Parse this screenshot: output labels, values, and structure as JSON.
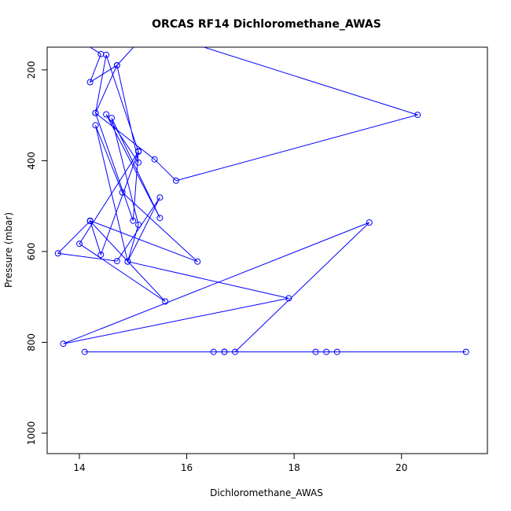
{
  "chart_data": {
    "type": "line",
    "title": "ORCAS RF14 Dichloromethane_AWAS",
    "xlabel": "Dichloromethane_AWAS",
    "ylabel": "Pressure (mbar)",
    "xlim": [
      13.4,
      21.6
    ],
    "ylim": [
      1045,
      150
    ],
    "y_reversed": true,
    "x_ticks": [
      14,
      16,
      18,
      20
    ],
    "y_ticks": [
      200,
      400,
      600,
      800,
      1000
    ],
    "grid": false,
    "legend": "none",
    "color": "#0000ff",
    "series": [
      {
        "x_out_in": [
          13.0,
          14.2
        ],
        "y_out_in": [
          -70,
          150
        ],
        "points_x": [
          14.4,
          14.2,
          14.7,
          15.3,
          20.3,
          15.8,
          15.4,
          14.3,
          14.7,
          15.1,
          14.5,
          15.5,
          14.6,
          15.1,
          14.9,
          14.3,
          14.8,
          16.2,
          14.2,
          14.4,
          15.1,
          15.0,
          14.3,
          14.5,
          15.1,
          14.0,
          15.6,
          14.2,
          13.6,
          14.7,
          15.5,
          14.9,
          17.9,
          13.7,
          19.4,
          16.9,
          16.7,
          16.5,
          16.7,
          18.6,
          18.8,
          21.2,
          18.4,
          14.1
        ],
        "points_y": [
          165,
          227,
          190,
          112,
          299,
          444,
          397,
          295,
          190,
          404,
          298,
          526,
          306,
          541,
          622,
          322,
          470,
          622,
          532,
          607,
          379,
          532,
          295,
          167,
          380,
          583,
          710,
          533,
          604,
          621,
          481,
          622,
          703,
          803,
          536,
          821,
          821,
          821,
          821,
          821,
          821,
          821,
          821,
          821
        ]
      }
    ]
  }
}
